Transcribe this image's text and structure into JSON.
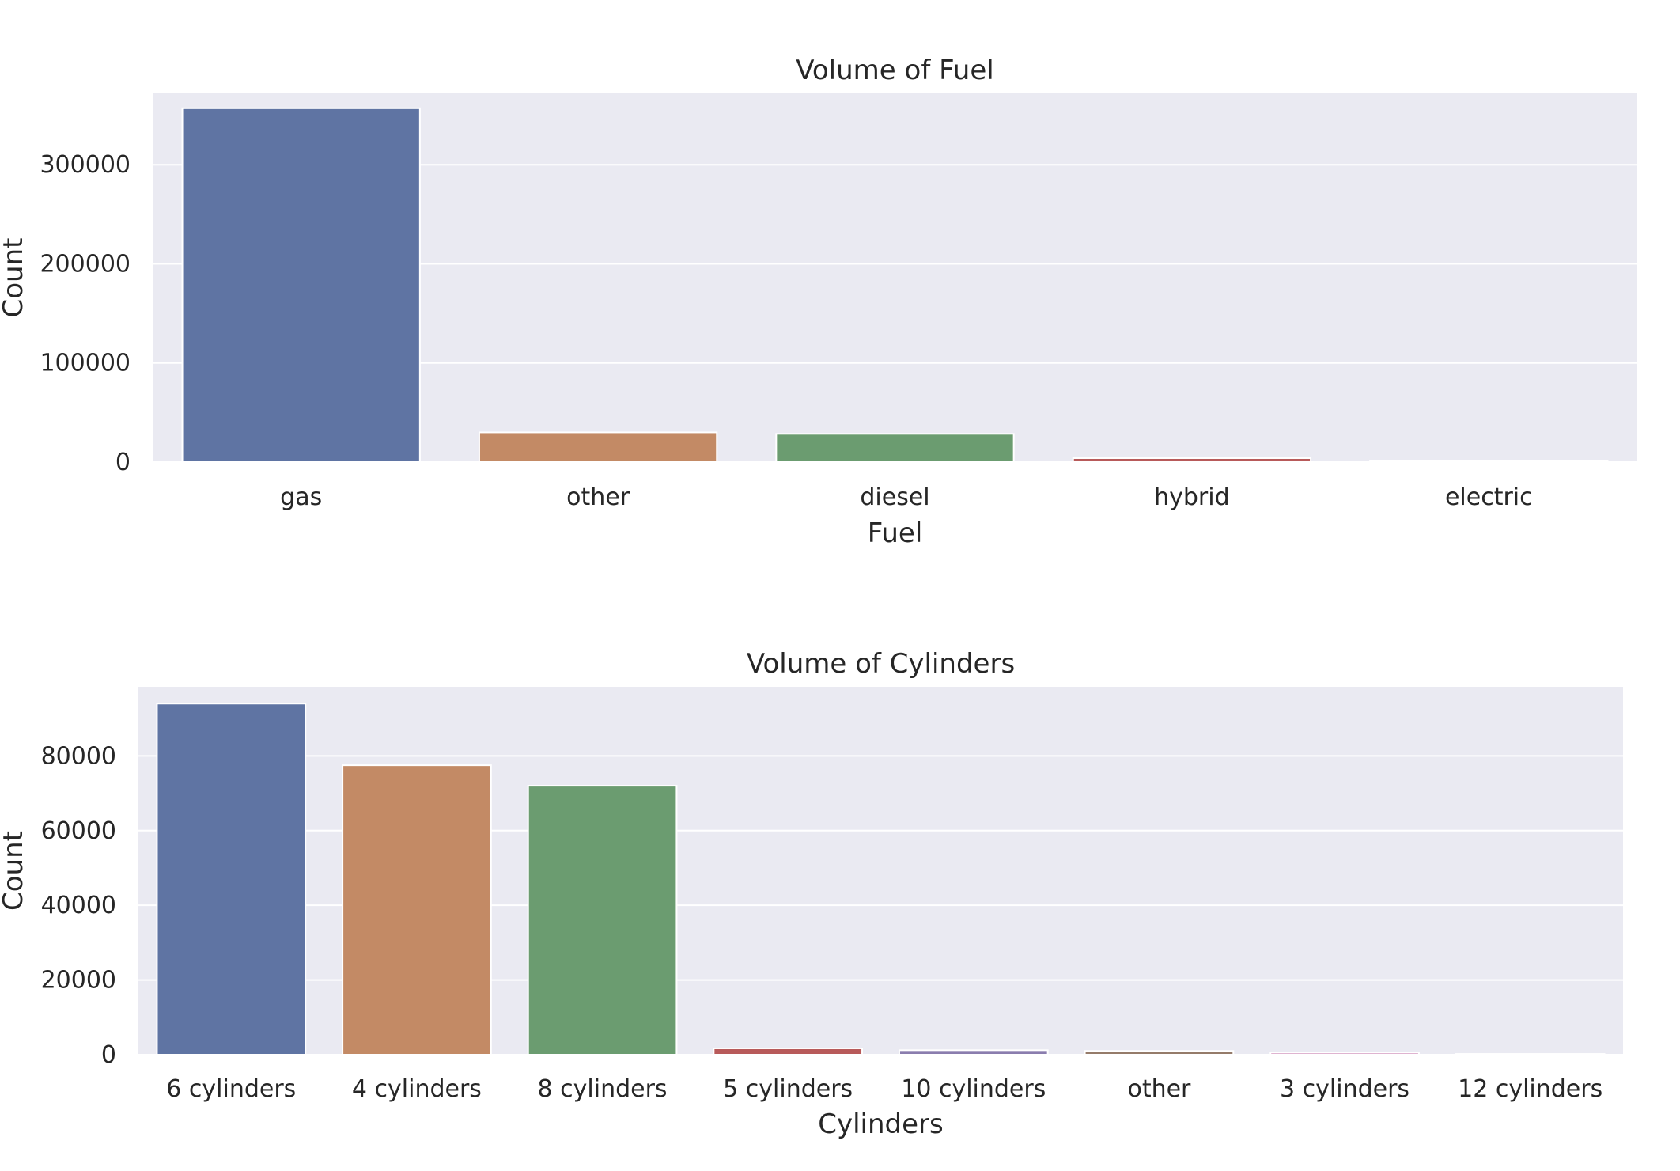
{
  "chart_data": [
    {
      "type": "bar",
      "title": "Volume of Fuel",
      "xlabel": "Fuel",
      "ylabel": "Count",
      "categories": [
        "gas",
        "other",
        "diesel",
        "hybrid",
        "electric"
      ],
      "values": [
        357000,
        30000,
        28500,
        4000,
        1500
      ],
      "ylim": [
        0,
        372000
      ],
      "yticks": [
        0,
        100000,
        200000,
        300000
      ],
      "grid": true,
      "colors": [
        "#5F74A3",
        "#C38A65",
        "#6B9C70",
        "#B85A5A",
        "#8A7DAE"
      ],
      "background": "#EAEAF2"
    },
    {
      "type": "bar",
      "title": "Volume of Cylinders",
      "xlabel": "Cylinders",
      "ylabel": "Count",
      "categories": [
        "6 cylinders",
        "4 cylinders",
        "8 cylinders",
        "5 cylinders",
        "10 cylinders",
        "other",
        "3 cylinders",
        "12 cylinders"
      ],
      "values": [
        94000,
        77500,
        72000,
        1700,
        1200,
        1000,
        600,
        200
      ],
      "ylim": [
        0,
        98500
      ],
      "yticks": [
        0,
        20000,
        40000,
        60000,
        80000
      ],
      "grid": true,
      "colors": [
        "#5F74A3",
        "#C38A65",
        "#6B9C70",
        "#B85A5A",
        "#8A7DAE",
        "#957B6A",
        "#D9A5C8",
        "#9A9A9A"
      ],
      "background": "#EAEAF2"
    }
  ]
}
